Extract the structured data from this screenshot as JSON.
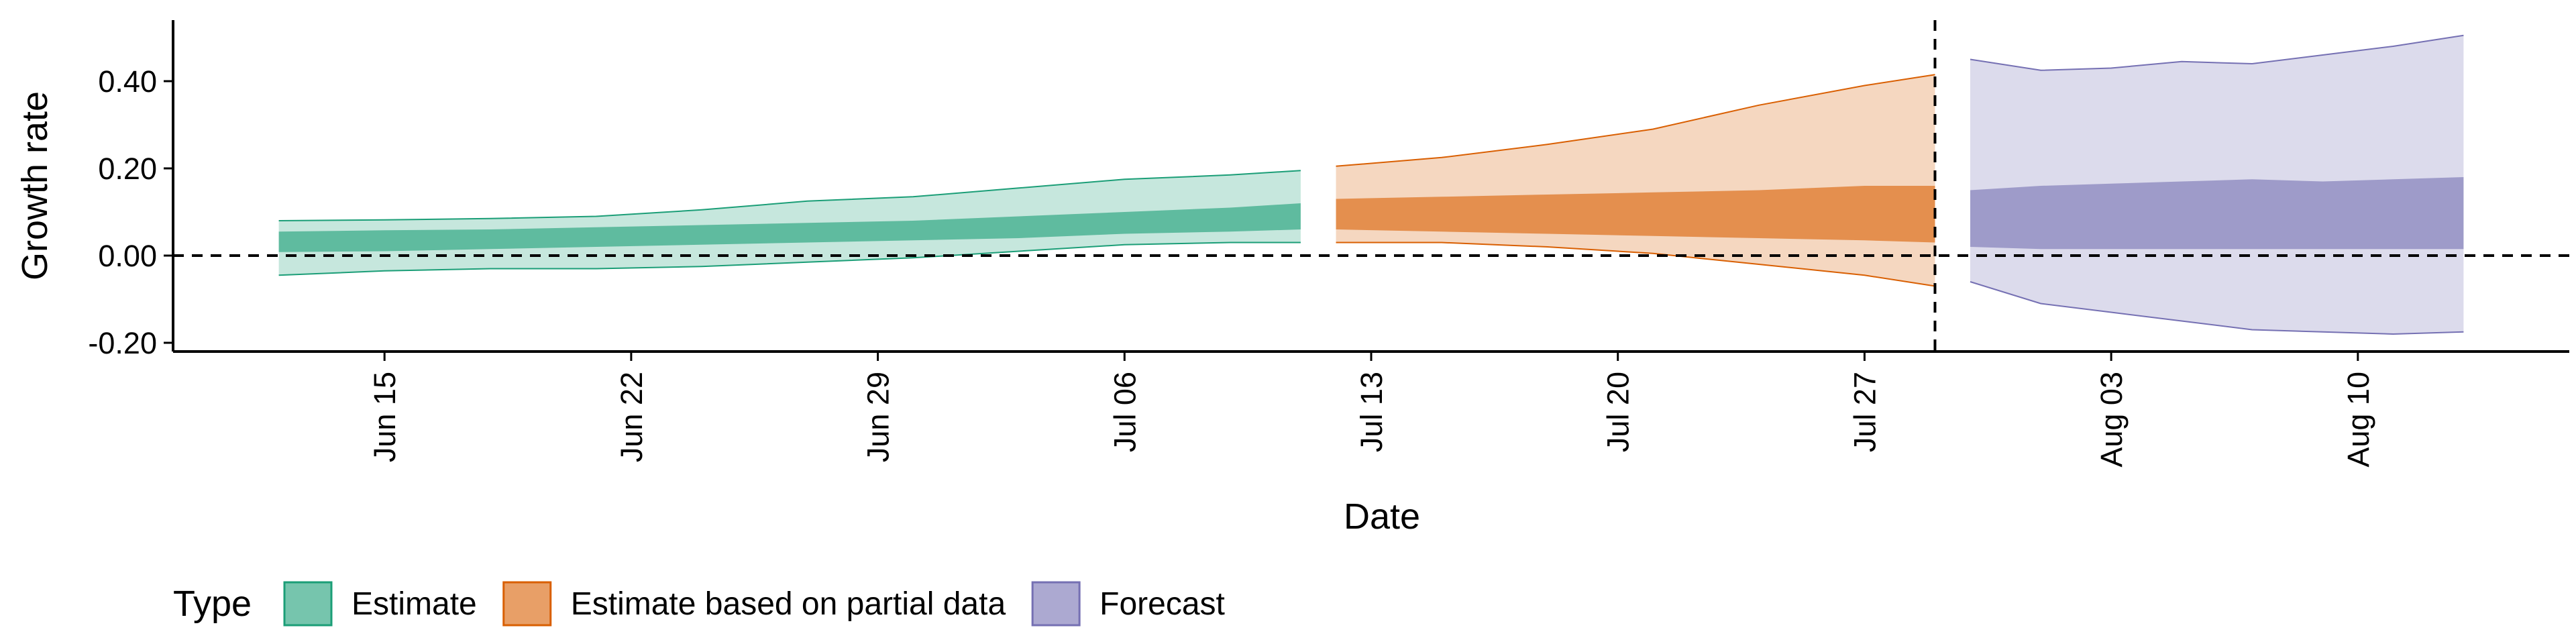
{
  "chart_data": {
    "type": "area",
    "xlabel": "Date",
    "ylabel": "Growth rate",
    "ylim": [
      -0.22,
      0.54
    ],
    "xlim": [
      "2020-06-09",
      "2020-08-16"
    ],
    "y_ticks": [
      -0.2,
      0.0,
      0.2,
      0.4
    ],
    "y_tick_labels": [
      "-0.20",
      "0.00",
      "0.20",
      "0.40"
    ],
    "x_ticks": [
      "2020-06-15",
      "2020-06-22",
      "2020-06-29",
      "2020-07-06",
      "2020-07-13",
      "2020-07-20",
      "2020-07-27",
      "2020-08-03",
      "2020-08-10"
    ],
    "x_tick_labels": [
      "Jun 15",
      "Jun 22",
      "Jun 29",
      "Jul 06",
      "Jul 13",
      "Jul 20",
      "Jul 27",
      "Aug 03",
      "Aug 10"
    ],
    "hline": 0.0,
    "vline": "2020-07-29",
    "grid": false,
    "legend": {
      "title": "Type",
      "position": "bottom-left",
      "entries": [
        "Estimate",
        "Estimate based on partial data",
        "Forecast"
      ]
    },
    "series": [
      {
        "name": "Estimate",
        "color": "#1b9e77",
        "x": [
          "2020-06-12",
          "2020-06-15",
          "2020-06-18",
          "2020-06-21",
          "2020-06-24",
          "2020-06-27",
          "2020-06-30",
          "2020-07-03",
          "2020-07-06",
          "2020-07-09",
          "2020-07-11"
        ],
        "upper90": [
          0.08,
          0.082,
          0.085,
          0.09,
          0.105,
          0.125,
          0.135,
          0.155,
          0.175,
          0.185,
          0.195
        ],
        "upper50": [
          0.055,
          0.058,
          0.06,
          0.065,
          0.07,
          0.075,
          0.08,
          0.09,
          0.1,
          0.11,
          0.12
        ],
        "lower50": [
          0.008,
          0.01,
          0.015,
          0.02,
          0.025,
          0.03,
          0.035,
          0.04,
          0.05,
          0.055,
          0.06
        ],
        "lower90": [
          -0.045,
          -0.035,
          -0.03,
          -0.03,
          -0.025,
          -0.015,
          -0.005,
          0.01,
          0.025,
          0.03,
          0.03
        ]
      },
      {
        "name": "Estimate based on partial data",
        "color": "#d95f02",
        "x": [
          "2020-07-12",
          "2020-07-15",
          "2020-07-18",
          "2020-07-21",
          "2020-07-24",
          "2020-07-27",
          "2020-07-29"
        ],
        "upper90": [
          0.205,
          0.225,
          0.255,
          0.29,
          0.345,
          0.39,
          0.415
        ],
        "upper50": [
          0.13,
          0.135,
          0.14,
          0.145,
          0.15,
          0.16,
          0.16
        ],
        "lower50": [
          0.06,
          0.055,
          0.05,
          0.045,
          0.04,
          0.035,
          0.03
        ],
        "lower90": [
          0.03,
          0.03,
          0.02,
          0.005,
          -0.02,
          -0.045,
          -0.07
        ]
      },
      {
        "name": "Forecast",
        "color": "#7570b3",
        "x": [
          "2020-07-30",
          "2020-08-01",
          "2020-08-03",
          "2020-08-05",
          "2020-08-07",
          "2020-08-09",
          "2020-08-11",
          "2020-08-13"
        ],
        "upper90": [
          0.45,
          0.425,
          0.43,
          0.445,
          0.44,
          0.46,
          0.48,
          0.505
        ],
        "upper50": [
          0.15,
          0.16,
          0.165,
          0.17,
          0.175,
          0.17,
          0.175,
          0.18
        ],
        "lower50": [
          0.02,
          0.015,
          0.015,
          0.015,
          0.015,
          0.015,
          0.015,
          0.015
        ],
        "lower90": [
          -0.06,
          -0.11,
          -0.13,
          -0.15,
          -0.17,
          -0.175,
          -0.18,
          -0.175
        ]
      }
    ]
  }
}
